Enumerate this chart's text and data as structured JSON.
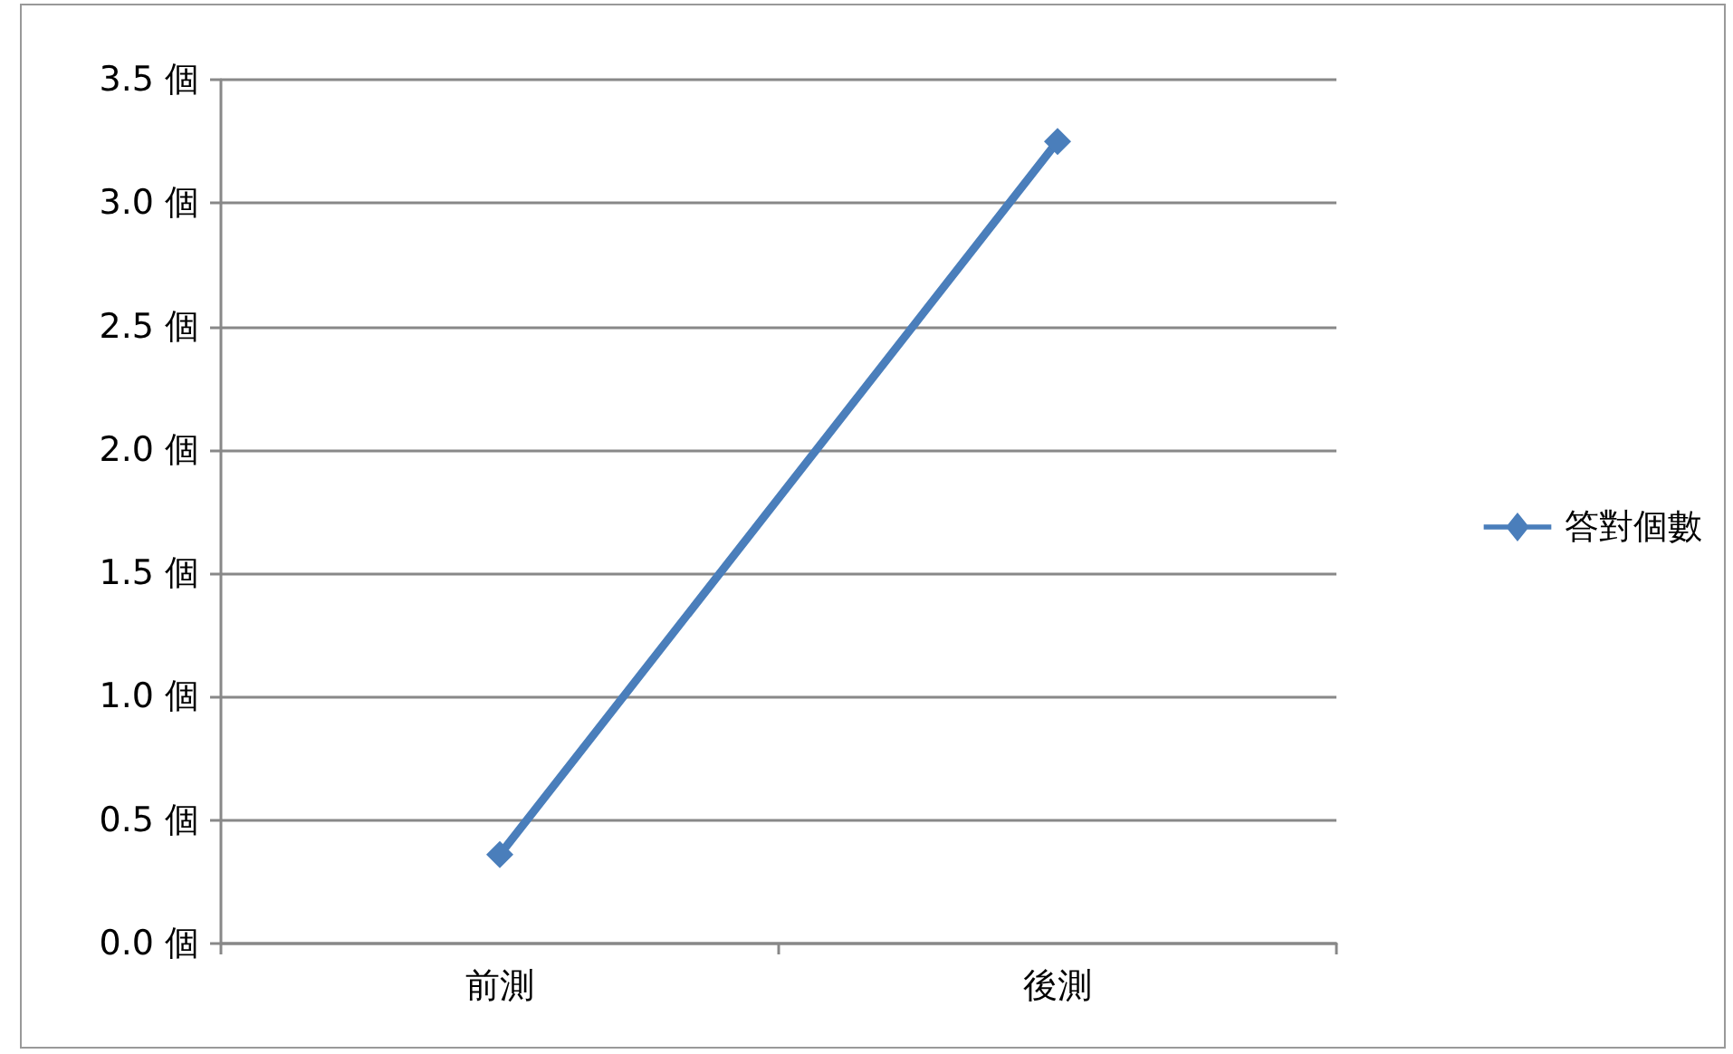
{
  "chart_data": {
    "type": "line",
    "categories": [
      "前測",
      "後測"
    ],
    "series": [
      {
        "name": "答對個數",
        "color": "#4a7ebb",
        "values": [
          0.36,
          3.25
        ]
      }
    ],
    "ylim": [
      0,
      3.5
    ],
    "yticks": [
      {
        "value": 0,
        "label": "0.0 個"
      },
      {
        "value": 0.5,
        "label": "0.5 個"
      },
      {
        "value": 1,
        "label": "1.0 個"
      },
      {
        "value": 1.5,
        "label": "1.5 個"
      },
      {
        "value": 2,
        "label": "2.0 個"
      },
      {
        "value": 2.5,
        "label": "2.5 個"
      },
      {
        "value": 3,
        "label": "3.0 個"
      },
      {
        "value": 3.5,
        "label": "3.5 個"
      }
    ],
    "grid": "y",
    "legend": "right",
    "marker": "diamond",
    "line_style": "solid"
  }
}
